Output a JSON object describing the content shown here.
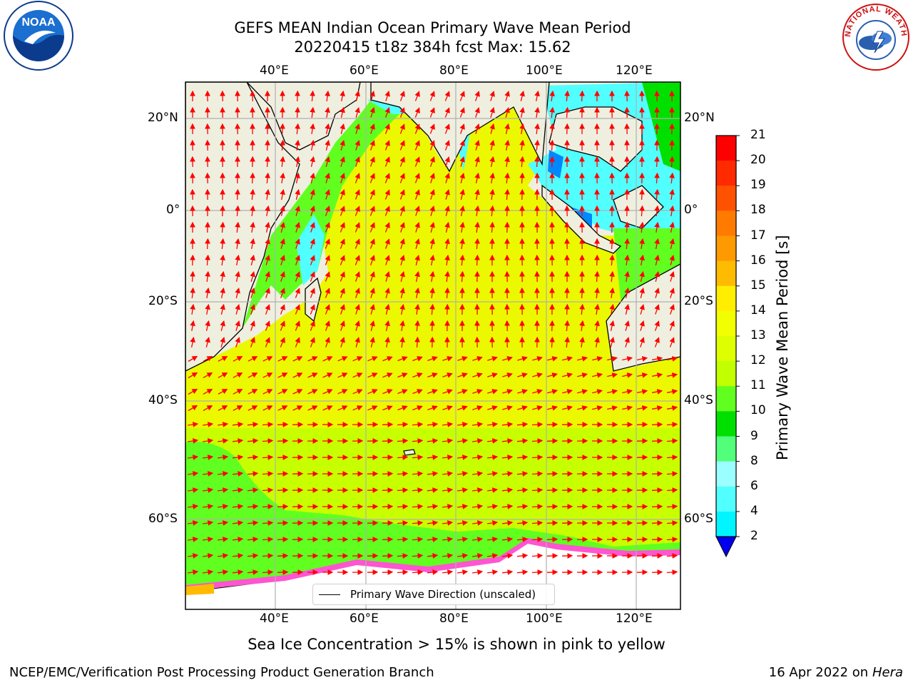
{
  "title_line1": "GEFS MEAN Indian Ocean Primary Wave Mean Period",
  "title_line2": "20220415 t18z 384h fcst   Max: 15.62",
  "top_lon_ticks": [
    "40°E",
    "60°E",
    "80°E",
    "100°E",
    "120°E"
  ],
  "bottom_lon_ticks": [
    "40°E",
    "60°E",
    "80°E",
    "100°E",
    "120°E"
  ],
  "left_lat_ticks": [
    "20°N",
    "0°",
    "20°S",
    "40°S",
    "60°S"
  ],
  "right_lat_ticks": [
    "20°N",
    "0°",
    "20°S",
    "40°S",
    "60°S"
  ],
  "colorbar": {
    "label": "Primary Wave Mean Period [s]",
    "ticks": [
      "21",
      "20",
      "19",
      "18",
      "17",
      "16",
      "15",
      "14",
      "13",
      "12",
      "11",
      "10",
      "9",
      "8",
      "6",
      "4",
      "2"
    ],
    "colors": [
      "#ff0000",
      "#ff2a00",
      "#ff5200",
      "#ff7b00",
      "#ff9900",
      "#ffbb00",
      "#ffee00",
      "#f2ff00",
      "#ddff00",
      "#c2ff00",
      "#60ff20",
      "#00e000",
      "#52ff7a",
      "#9cffff",
      "#52ffff",
      "#00f5ff",
      "#0088ff",
      "#0000ee"
    ]
  },
  "legend": {
    "label": "Primary Wave Direction (unscaled)"
  },
  "note": "Sea Ice Concentration > 15% is shown in pink to yellow",
  "footer_left": "NCEP/EMC/Verification Post Processing Product Generation Branch",
  "footer_right_date": "16 Apr 2022 on ",
  "footer_right_host": "Hera",
  "logos": {
    "left": "NOAA",
    "right": "NATIONAL WEATHER SERVICE"
  },
  "colors": {
    "land": "#efefe0",
    "ocean_main": "#ecf800",
    "ocean_south": "#c8ff00",
    "arrow": "#ff0000",
    "ice_fringe": "#ff55d0"
  }
}
